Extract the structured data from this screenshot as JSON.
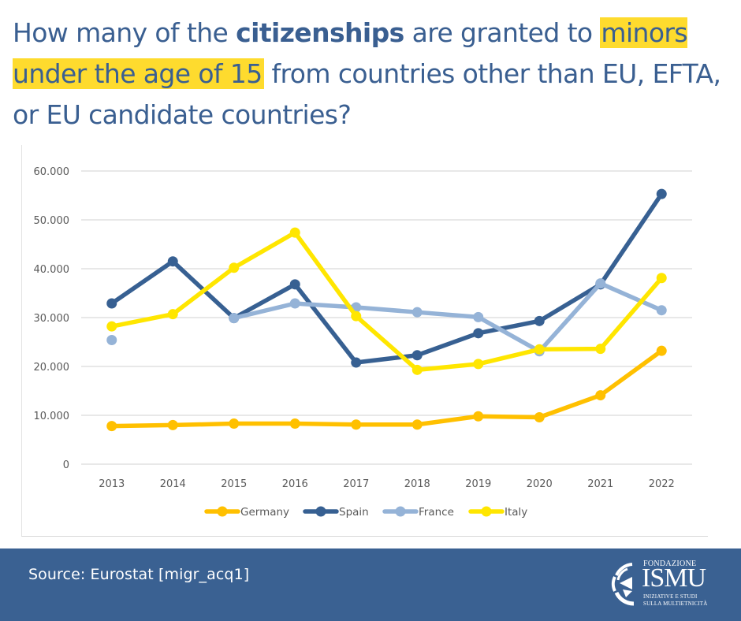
{
  "headline": {
    "part1": "How many of the ",
    "bold": "citizenships",
    "part2": " are granted to ",
    "highlight": "minors under the age of 15",
    "part3": " from countries other than EU, EFTA, or EU candidate countries?"
  },
  "colors": {
    "title_text": "#3a5f91",
    "highlight": "#fedb2e",
    "footer_bg": "#3a6192",
    "gridline": "#d9d9d9"
  },
  "footer": {
    "source": "Source: Eurostat [migr_acq1]",
    "logo": {
      "top": "FONDAZIONE",
      "main": "ISMU",
      "sub1": "INIZIATIVE E STUDI",
      "sub2": "SULLA MULTIETNICITÀ"
    }
  },
  "chart_data": {
    "type": "line",
    "title": "",
    "xlabel": "",
    "ylabel": "",
    "x": [
      "2013",
      "2014",
      "2015",
      "2016",
      "2017",
      "2018",
      "2019",
      "2020",
      "2021",
      "2022"
    ],
    "ylim": [
      0,
      60000
    ],
    "yticks": [
      0,
      10000,
      20000,
      30000,
      40000,
      50000,
      60000
    ],
    "ytick_labels": [
      "0",
      "10.000",
      "20.000",
      "30.000",
      "40.000",
      "50.000",
      "60.000"
    ],
    "grid": true,
    "legend_position": "bottom",
    "series": [
      {
        "name": "Germany",
        "color": "#ffc000",
        "values": [
          7800,
          8000,
          8300,
          8300,
          8100,
          8100,
          9800,
          9600,
          14100,
          23200
        ]
      },
      {
        "name": "Spain",
        "color": "#376092",
        "values": [
          32900,
          41500,
          29900,
          36800,
          20800,
          22300,
          26800,
          29300,
          36800,
          55300
        ]
      },
      {
        "name": "France",
        "color": "#95b3d7",
        "values": [
          25400,
          null,
          29900,
          32900,
          32100,
          31100,
          30100,
          23100,
          37000,
          31500
        ]
      },
      {
        "name": "Italy",
        "color": "#ffe600",
        "values": [
          28200,
          30700,
          40200,
          47400,
          30300,
          19300,
          20500,
          23500,
          23600,
          38100
        ]
      }
    ]
  }
}
